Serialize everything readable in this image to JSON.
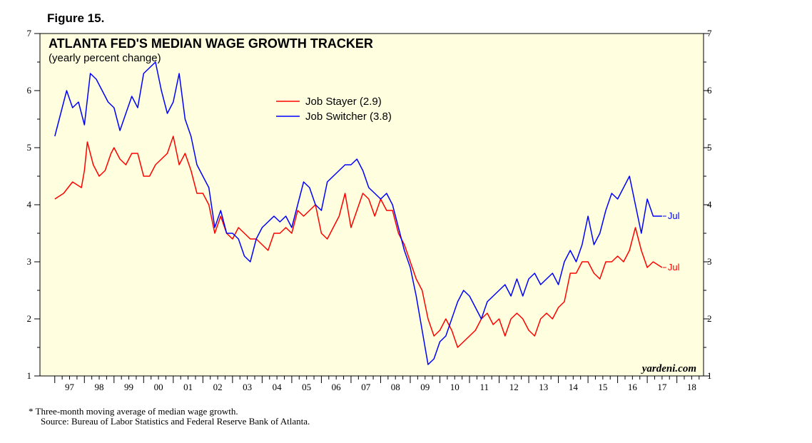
{
  "figure_label": "Figure 15.",
  "footnote": "* Three-month moving average of median wage growth.",
  "source": "Source: Bureau of Labor Statistics and Federal Reserve Bank of Atlanta.",
  "credit": "yardeni.com",
  "colors": {
    "background": "#ffffe0",
    "stayer": "#ff0000",
    "switcher": "#0000ff"
  },
  "chart_data": {
    "type": "line",
    "title": "ATLANTA FED'S MEDIAN WAGE GROWTH TRACKER",
    "subtitle": "(yearly percent change)",
    "xlabel": "",
    "ylabel": "",
    "ylim": [
      1,
      7
    ],
    "xlim": [
      1996.5,
      2018.9
    ],
    "y_ticks": [
      1,
      2,
      3,
      4,
      5,
      6,
      7
    ],
    "x_tick_labels": [
      "97",
      "98",
      "99",
      "00",
      "01",
      "02",
      "03",
      "04",
      "05",
      "06",
      "07",
      "08",
      "09",
      "10",
      "11",
      "12",
      "13",
      "14",
      "15",
      "16",
      "17",
      "18"
    ],
    "grid": false,
    "legend": "top-center",
    "series": [
      {
        "name": "Job Stayer (2.9)",
        "end_label": "Jul",
        "color": "#ff0000",
        "points": [
          [
            1997.0,
            4.1
          ],
          [
            1997.3,
            4.2
          ],
          [
            1997.6,
            4.4
          ],
          [
            1997.9,
            4.3
          ],
          [
            1998.0,
            4.6
          ],
          [
            1998.1,
            5.1
          ],
          [
            1998.3,
            4.7
          ],
          [
            1998.5,
            4.5
          ],
          [
            1998.7,
            4.6
          ],
          [
            1998.9,
            4.9
          ],
          [
            1999.0,
            5.0
          ],
          [
            1999.2,
            4.8
          ],
          [
            1999.4,
            4.7
          ],
          [
            1999.6,
            4.9
          ],
          [
            1999.8,
            4.9
          ],
          [
            2000.0,
            4.5
          ],
          [
            2000.2,
            4.5
          ],
          [
            2000.4,
            4.7
          ],
          [
            2000.6,
            4.8
          ],
          [
            2000.8,
            4.9
          ],
          [
            2001.0,
            5.2
          ],
          [
            2001.2,
            4.7
          ],
          [
            2001.4,
            4.9
          ],
          [
            2001.6,
            4.6
          ],
          [
            2001.8,
            4.2
          ],
          [
            2002.0,
            4.2
          ],
          [
            2002.2,
            4.0
          ],
          [
            2002.4,
            3.5
          ],
          [
            2002.6,
            3.8
          ],
          [
            2002.8,
            3.5
          ],
          [
            2003.0,
            3.4
          ],
          [
            2003.2,
            3.6
          ],
          [
            2003.4,
            3.5
          ],
          [
            2003.6,
            3.4
          ],
          [
            2003.8,
            3.4
          ],
          [
            2004.0,
            3.3
          ],
          [
            2004.2,
            3.2
          ],
          [
            2004.4,
            3.5
          ],
          [
            2004.6,
            3.5
          ],
          [
            2004.8,
            3.6
          ],
          [
            2005.0,
            3.5
          ],
          [
            2005.2,
            3.9
          ],
          [
            2005.4,
            3.8
          ],
          [
            2005.6,
            3.9
          ],
          [
            2005.8,
            4.0
          ],
          [
            2006.0,
            3.5
          ],
          [
            2006.2,
            3.4
          ],
          [
            2006.4,
            3.6
          ],
          [
            2006.6,
            3.8
          ],
          [
            2006.8,
            4.2
          ],
          [
            2007.0,
            3.6
          ],
          [
            2007.2,
            3.9
          ],
          [
            2007.4,
            4.2
          ],
          [
            2007.6,
            4.1
          ],
          [
            2007.8,
            3.8
          ],
          [
            2008.0,
            4.1
          ],
          [
            2008.2,
            3.9
          ],
          [
            2008.4,
            3.9
          ],
          [
            2008.6,
            3.5
          ],
          [
            2008.8,
            3.3
          ],
          [
            2009.0,
            3.0
          ],
          [
            2009.2,
            2.7
          ],
          [
            2009.4,
            2.5
          ],
          [
            2009.6,
            2.0
          ],
          [
            2009.8,
            1.7
          ],
          [
            2010.0,
            1.8
          ],
          [
            2010.2,
            2.0
          ],
          [
            2010.4,
            1.8
          ],
          [
            2010.6,
            1.5
          ],
          [
            2010.8,
            1.6
          ],
          [
            2011.0,
            1.7
          ],
          [
            2011.2,
            1.8
          ],
          [
            2011.4,
            2.0
          ],
          [
            2011.6,
            2.1
          ],
          [
            2011.8,
            1.9
          ],
          [
            2012.0,
            2.0
          ],
          [
            2012.2,
            1.7
          ],
          [
            2012.4,
            2.0
          ],
          [
            2012.6,
            2.1
          ],
          [
            2012.8,
            2.0
          ],
          [
            2013.0,
            1.8
          ],
          [
            2013.2,
            1.7
          ],
          [
            2013.4,
            2.0
          ],
          [
            2013.6,
            2.1
          ],
          [
            2013.8,
            2.0
          ],
          [
            2014.0,
            2.2
          ],
          [
            2014.2,
            2.3
          ],
          [
            2014.4,
            2.8
          ],
          [
            2014.6,
            2.8
          ],
          [
            2014.8,
            3.0
          ],
          [
            2015.0,
            3.0
          ],
          [
            2015.2,
            2.8
          ],
          [
            2015.4,
            2.7
          ],
          [
            2015.6,
            3.0
          ],
          [
            2015.8,
            3.0
          ],
          [
            2016.0,
            3.1
          ],
          [
            2016.2,
            3.0
          ],
          [
            2016.4,
            3.2
          ],
          [
            2016.6,
            3.6
          ],
          [
            2016.8,
            3.2
          ],
          [
            2017.0,
            2.9
          ],
          [
            2017.2,
            3.0
          ],
          [
            2017.5,
            2.9
          ]
        ]
      },
      {
        "name": "Job Switcher (3.8)",
        "end_label": "Jul",
        "color": "#0000ff",
        "points": [
          [
            1997.0,
            5.2
          ],
          [
            1997.2,
            5.6
          ],
          [
            1997.4,
            6.0
          ],
          [
            1997.6,
            5.7
          ],
          [
            1997.8,
            5.8
          ],
          [
            1998.0,
            5.4
          ],
          [
            1998.2,
            6.3
          ],
          [
            1998.4,
            6.2
          ],
          [
            1998.6,
            6.0
          ],
          [
            1998.8,
            5.8
          ],
          [
            1999.0,
            5.7
          ],
          [
            1999.2,
            5.3
          ],
          [
            1999.4,
            5.6
          ],
          [
            1999.6,
            5.9
          ],
          [
            1999.8,
            5.7
          ],
          [
            2000.0,
            6.3
          ],
          [
            2000.2,
            6.4
          ],
          [
            2000.4,
            6.5
          ],
          [
            2000.6,
            6.0
          ],
          [
            2000.8,
            5.6
          ],
          [
            2001.0,
            5.8
          ],
          [
            2001.2,
            6.3
          ],
          [
            2001.4,
            5.5
          ],
          [
            2001.6,
            5.2
          ],
          [
            2001.8,
            4.7
          ],
          [
            2002.0,
            4.5
          ],
          [
            2002.2,
            4.3
          ],
          [
            2002.4,
            3.6
          ],
          [
            2002.6,
            3.9
          ],
          [
            2002.8,
            3.5
          ],
          [
            2003.0,
            3.5
          ],
          [
            2003.2,
            3.4
          ],
          [
            2003.4,
            3.1
          ],
          [
            2003.6,
            3.0
          ],
          [
            2003.8,
            3.4
          ],
          [
            2004.0,
            3.6
          ],
          [
            2004.2,
            3.7
          ],
          [
            2004.4,
            3.8
          ],
          [
            2004.6,
            3.7
          ],
          [
            2004.8,
            3.8
          ],
          [
            2005.0,
            3.6
          ],
          [
            2005.2,
            4.0
          ],
          [
            2005.4,
            4.4
          ],
          [
            2005.6,
            4.3
          ],
          [
            2005.8,
            4.0
          ],
          [
            2006.0,
            3.9
          ],
          [
            2006.2,
            4.4
          ],
          [
            2006.4,
            4.5
          ],
          [
            2006.6,
            4.6
          ],
          [
            2006.8,
            4.7
          ],
          [
            2007.0,
            4.7
          ],
          [
            2007.2,
            4.8
          ],
          [
            2007.4,
            4.6
          ],
          [
            2007.6,
            4.3
          ],
          [
            2007.8,
            4.2
          ],
          [
            2008.0,
            4.1
          ],
          [
            2008.2,
            4.2
          ],
          [
            2008.4,
            4.0
          ],
          [
            2008.6,
            3.6
          ],
          [
            2008.8,
            3.2
          ],
          [
            2009.0,
            2.9
          ],
          [
            2009.2,
            2.4
          ],
          [
            2009.4,
            1.8
          ],
          [
            2009.6,
            1.2
          ],
          [
            2009.8,
            1.3
          ],
          [
            2010.0,
            1.6
          ],
          [
            2010.2,
            1.7
          ],
          [
            2010.4,
            2.0
          ],
          [
            2010.6,
            2.3
          ],
          [
            2010.8,
            2.5
          ],
          [
            2011.0,
            2.4
          ],
          [
            2011.2,
            2.2
          ],
          [
            2011.4,
            2.0
          ],
          [
            2011.6,
            2.3
          ],
          [
            2011.8,
            2.4
          ],
          [
            2012.0,
            2.5
          ],
          [
            2012.2,
            2.6
          ],
          [
            2012.4,
            2.4
          ],
          [
            2012.6,
            2.7
          ],
          [
            2012.8,
            2.4
          ],
          [
            2013.0,
            2.7
          ],
          [
            2013.2,
            2.8
          ],
          [
            2013.4,
            2.6
          ],
          [
            2013.6,
            2.7
          ],
          [
            2013.8,
            2.8
          ],
          [
            2014.0,
            2.6
          ],
          [
            2014.2,
            3.0
          ],
          [
            2014.4,
            3.2
          ],
          [
            2014.6,
            3.0
          ],
          [
            2014.8,
            3.3
          ],
          [
            2015.0,
            3.8
          ],
          [
            2015.2,
            3.3
          ],
          [
            2015.4,
            3.5
          ],
          [
            2015.6,
            3.9
          ],
          [
            2015.8,
            4.2
          ],
          [
            2016.0,
            4.1
          ],
          [
            2016.2,
            4.3
          ],
          [
            2016.4,
            4.5
          ],
          [
            2016.6,
            4.0
          ],
          [
            2016.8,
            3.5
          ],
          [
            2017.0,
            4.1
          ],
          [
            2017.2,
            3.8
          ],
          [
            2017.5,
            3.8
          ]
        ]
      }
    ]
  }
}
